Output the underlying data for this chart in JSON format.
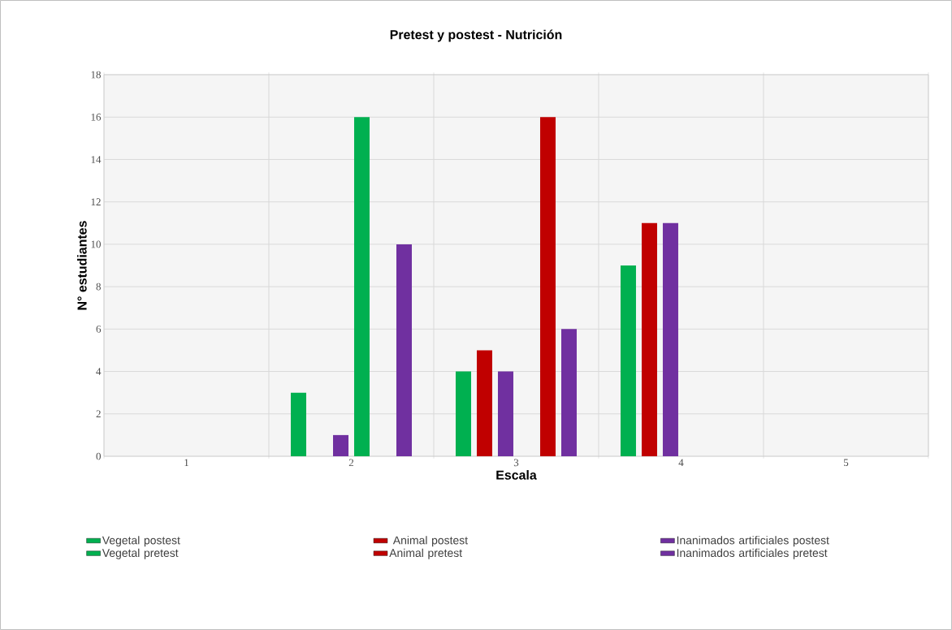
{
  "chart_data": {
    "type": "bar",
    "title": "Pretest y postest - Nutrición",
    "xlabel": "Escala",
    "ylabel": "N° estudiantes",
    "categories": [
      "1",
      "2",
      "3",
      "4",
      "5"
    ],
    "series": [
      {
        "name": "Vegetal postest",
        "color": "#00b050",
        "values": [
          0,
          3,
          4,
          9,
          0
        ]
      },
      {
        "name": " Animal postest",
        "color": "#c00000",
        "values": [
          0,
          0,
          5,
          11,
          0
        ]
      },
      {
        "name": "Inanimados artificiales postest",
        "color": "#7030a0",
        "values": [
          0,
          1,
          4,
          11,
          0
        ]
      },
      {
        "name": "Vegetal pretest",
        "color": "#00b050",
        "values": [
          0,
          16,
          0,
          0,
          0
        ]
      },
      {
        "name": "Animal pretest",
        "color": "#c00000",
        "values": [
          0,
          0,
          16,
          0,
          0
        ]
      },
      {
        "name": "Inanimados artificiales pretest",
        "color": "#7030a0",
        "values": [
          0,
          10,
          6,
          0,
          0
        ]
      }
    ],
    "ylim": [
      0,
      18
    ],
    "yticks": [
      0,
      2,
      4,
      6,
      8,
      10,
      12,
      14,
      16,
      18
    ],
    "grid": true,
    "legend": "bottom"
  }
}
